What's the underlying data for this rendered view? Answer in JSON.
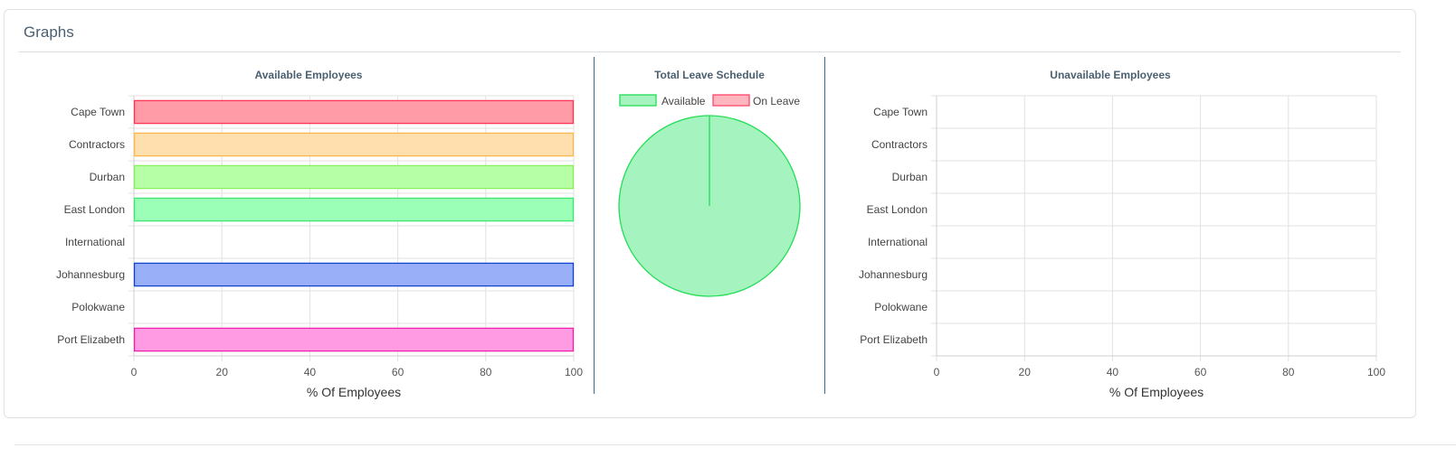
{
  "panel": {
    "title": "Graphs"
  },
  "chart_data": [
    {
      "type": "bar",
      "orientation": "horizontal",
      "title": "Available Employees",
      "xlabel": "% Of Employees",
      "ylabel": "",
      "categories": [
        "Cape Town",
        "Contractors",
        "Durban",
        "East London",
        "International",
        "Johannesburg",
        "Polokwane",
        "Port Elizabeth"
      ],
      "values": [
        100,
        100,
        100,
        100,
        0,
        100,
        0,
        100
      ],
      "fill_colors": [
        "#ff9ba6",
        "#ffdfae",
        "#b7ffa6",
        "#9bffb8",
        "#cccccc",
        "#99b0f9",
        "#d0d0d0",
        "#ff9be2"
      ],
      "border_colors": [
        "#ff3355",
        "#ffb74d",
        "#86f05a",
        "#3de870",
        "#999999",
        "#1144cc",
        "#999999",
        "#ee22aa"
      ],
      "xlim": [
        0,
        100
      ],
      "xticks": [
        "0",
        "20",
        "40",
        "60",
        "80",
        "100"
      ],
      "grid": true
    },
    {
      "type": "pie",
      "title": "Total Leave Schedule",
      "labels": [
        "Available",
        "On Leave"
      ],
      "values": [
        100,
        0
      ],
      "fill_colors": [
        "#a5f3bf",
        "#ffb6bf"
      ],
      "border_colors": [
        "#22dd55",
        "#ff4466"
      ],
      "legend": "top"
    },
    {
      "type": "bar",
      "orientation": "horizontal",
      "title": "Unavailable Employees",
      "xlabel": "% Of Employees",
      "ylabel": "",
      "categories": [
        "Cape Town",
        "Contractors",
        "Durban",
        "East London",
        "International",
        "Johannesburg",
        "Polokwane",
        "Port Elizabeth"
      ],
      "values": [
        0,
        0,
        0,
        0,
        0,
        0,
        0,
        0
      ],
      "xlim": [
        0,
        100
      ],
      "xticks": [
        "0",
        "20",
        "40",
        "60",
        "80",
        "100"
      ],
      "grid": true
    }
  ]
}
